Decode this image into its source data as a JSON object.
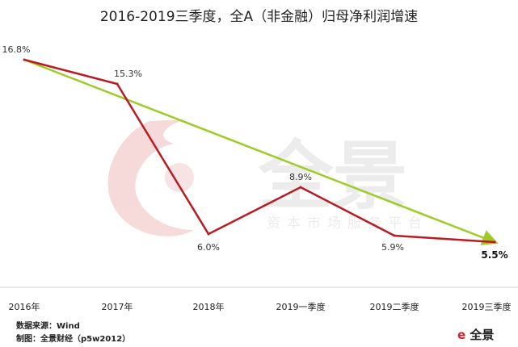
{
  "title": "2016-2019三季度，全A（非金融）归母净利润增速",
  "footer": {
    "source": "数据来源：Wind",
    "maker": "制图：全景财经（p5w2012）"
  },
  "brand": "全景",
  "watermark": {
    "name": "全景",
    "tagline": "资本市场服务平台"
  },
  "colors": {
    "series": "#b81c22",
    "trend": "#9ccc25"
  },
  "chart_data": {
    "type": "line",
    "categories": [
      "2016年",
      "2017年",
      "2018年",
      "2019一季度",
      "2019二季度",
      "2019三季度"
    ],
    "series": [
      {
        "values": [
          16.8,
          15.3,
          6.0,
          8.9,
          5.9,
          5.5
        ]
      }
    ],
    "labels": [
      "16.8%",
      "15.3%",
      "6.0%",
      "8.9%",
      "5.9%",
      "5.5%"
    ],
    "trendline": {
      "from": 16.8,
      "to": 5.5
    },
    "ylim": [
      3.0,
      18.5
    ],
    "grid": false
  }
}
